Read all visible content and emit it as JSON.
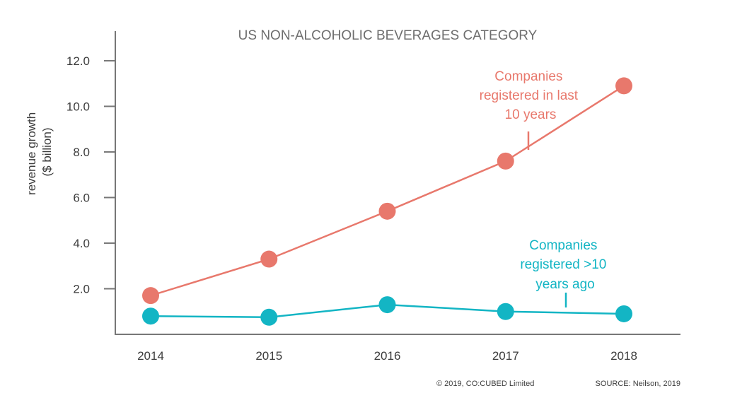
{
  "chart_data": {
    "type": "line",
    "title": "US NON-ALCOHOLIC BEVERAGES CATEGORY",
    "ylabel_lines": [
      "revenue growth",
      "($ billion)"
    ],
    "x": [
      "2014",
      "2015",
      "2016",
      "2017",
      "2018"
    ],
    "yticks": [
      "2.0",
      "4.0",
      "6.0",
      "8.0",
      "10.0",
      "12.0"
    ],
    "ylim": [
      0,
      13.3
    ],
    "grid": false,
    "series": [
      {
        "values": [
          1.7,
          3.3,
          5.4,
          7.6,
          10.9
        ],
        "color": "#e8786c",
        "annotation_lines": [
          "Companies",
          "registered in last",
          "10 years"
        ]
      },
      {
        "values": [
          0.8,
          0.75,
          1.3,
          1.0,
          0.9
        ],
        "color": "#13b5c4",
        "annotation_lines": [
          "Companies",
          "registered >10",
          "years ago"
        ]
      }
    ],
    "footer": {
      "copyright": "© 2019, CO:CUBED Limited",
      "source": "SOURCE: Neilson, 2019"
    }
  }
}
